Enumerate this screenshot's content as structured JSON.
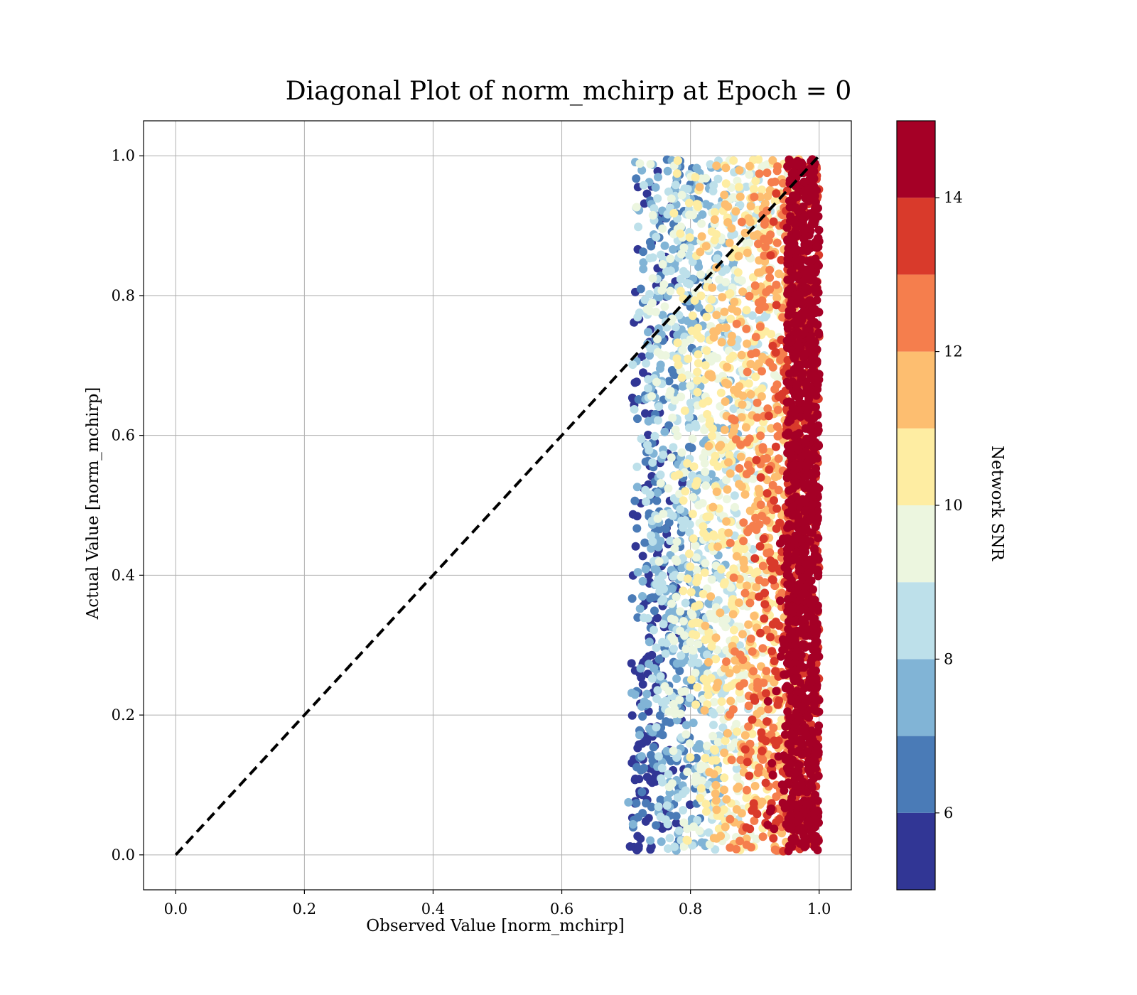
{
  "chart_data": {
    "type": "scatter",
    "title": "Diagonal Plot of norm_mchirp at Epoch = 0",
    "xlabel": "Observed Value [norm_mchirp]",
    "ylabel": "Actual Value [norm_mchirp]",
    "xlim": [
      -0.05,
      1.05
    ],
    "ylim": [
      -0.05,
      1.05
    ],
    "x_ticks": [
      "0.0",
      "0.2",
      "0.4",
      "0.6",
      "0.8",
      "1.0"
    ],
    "y_ticks": [
      "0.0",
      "0.2",
      "0.4",
      "0.6",
      "0.8",
      "1.0"
    ],
    "grid": true,
    "reference_line": {
      "from": [
        0,
        0
      ],
      "to": [
        1,
        1
      ],
      "style": "dashed",
      "color": "#000000"
    },
    "points_description": "Dense scatter of samples with observed values between about 0.69 and 1.0 and actual values spanning 0.0 to 1.0, colored by Network SNR; high-SNR points cluster near observed value 1.0.",
    "colorbar": {
      "label": "Network SNR",
      "range": [
        5,
        15
      ],
      "ticks": [
        "6",
        "8",
        "10",
        "12",
        "14"
      ],
      "bins": [
        {
          "from": 5,
          "to": 6,
          "color": "#313695"
        },
        {
          "from": 6,
          "to": 7,
          "color": "#4a7bb7"
        },
        {
          "from": 7,
          "to": 8,
          "color": "#81b4d6"
        },
        {
          "from": 8,
          "to": 9,
          "color": "#bde0ea"
        },
        {
          "from": 9,
          "to": 10,
          "color": "#ecf6df"
        },
        {
          "from": 10,
          "to": 11,
          "color": "#feeda2"
        },
        {
          "from": 11,
          "to": 12,
          "color": "#fdbe70"
        },
        {
          "from": 12,
          "to": 13,
          "color": "#f57e4d"
        },
        {
          "from": 13,
          "to": 14,
          "color": "#d93a2b"
        },
        {
          "from": 14,
          "to": 15,
          "color": "#a50026"
        }
      ]
    }
  }
}
